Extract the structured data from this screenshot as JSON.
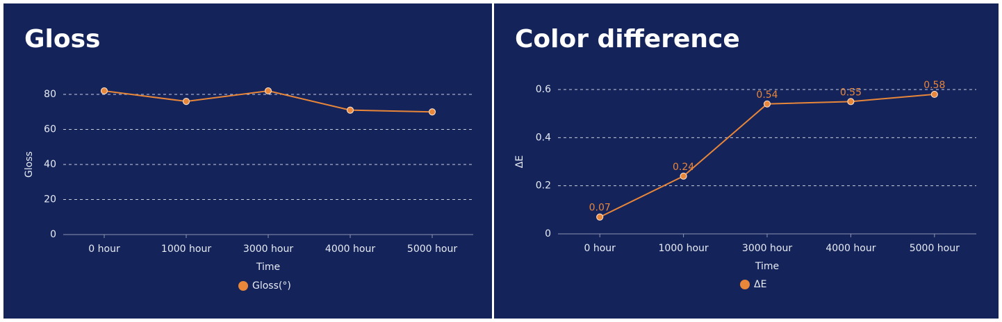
{
  "chart_data": [
    {
      "type": "line",
      "title": "Gloss",
      "x_label": "Time",
      "y_label": "Gloss",
      "categories": [
        "0 hour",
        "1000 hour",
        "3000 hour",
        "4000 hour",
        "5000 hour"
      ],
      "series": [
        {
          "name": "Gloss(°)",
          "color": "#e8863a",
          "values": [
            82,
            76,
            82,
            71,
            70
          ]
        }
      ],
      "ylim": [
        0,
        80
      ],
      "yticks": [
        0,
        20,
        40,
        60,
        80
      ],
      "grid": true,
      "legend": "bottom",
      "data_labels": false
    },
    {
      "type": "line",
      "title": "Color difference",
      "x_label": "Time",
      "y_label": "ΔE",
      "categories": [
        "0 hour",
        "1000 hour",
        "3000 hour",
        "4000 hour",
        "5000 hour"
      ],
      "series": [
        {
          "name": "ΔE",
          "color": "#e8863a",
          "values": [
            0.07,
            0.24,
            0.54,
            0.55,
            0.58
          ]
        }
      ],
      "ylim": [
        0,
        0.6
      ],
      "yticks": [
        0,
        0.2,
        0.4,
        0.6
      ],
      "grid": true,
      "legend": "bottom",
      "data_labels": true
    }
  ]
}
